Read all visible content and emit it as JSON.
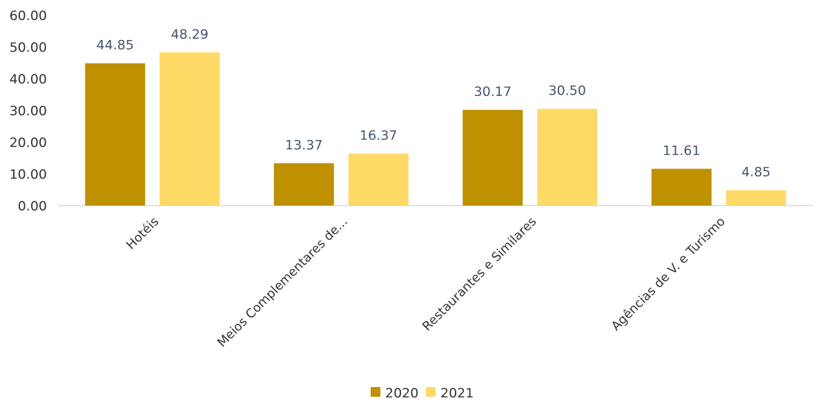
{
  "chart_data": {
    "type": "bar",
    "title": "",
    "xlabel": "",
    "ylabel": "",
    "categories": [
      "Hotéis",
      "Meios Complementares de...",
      "Restaurantes e Similares",
      "Agências de V. e Turismo"
    ],
    "series": [
      {
        "name": "2020",
        "values": [
          44.85,
          13.37,
          30.17,
          11.61
        ],
        "labels": [
          "44.85",
          "13.37",
          "30.17",
          "11.61"
        ],
        "color": "#bf9000"
      },
      {
        "name": "2021",
        "values": [
          48.29,
          16.37,
          30.5,
          4.85
        ],
        "labels": [
          "48.29",
          "16.37",
          "30.50",
          "4.85"
        ],
        "color": "#ffd966"
      }
    ],
    "ylim": [
      0,
      60
    ],
    "yticks": [
      "0.00",
      "10.00",
      "20.00",
      "30.00",
      "40.00",
      "50.00",
      "60.00"
    ],
    "grid": false,
    "legend_position": "bottom"
  }
}
